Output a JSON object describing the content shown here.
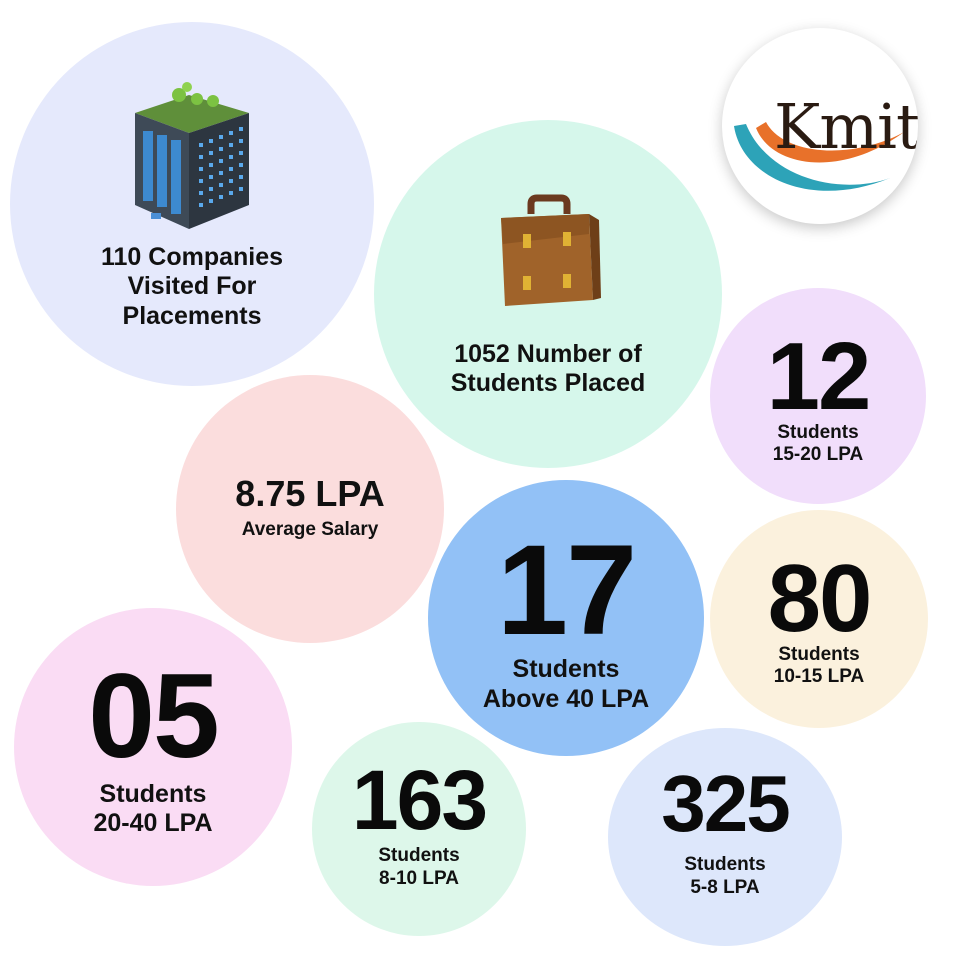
{
  "brand": {
    "logo_text": "Kmit",
    "colors": {
      "orange": "#E8712A",
      "teal": "#2DA3B8",
      "ink": "#2A1B12"
    }
  },
  "companies": {
    "text": "110 Companies Visited For Placements",
    "icon": "office-building-icon"
  },
  "placed": {
    "text": "1052 Number of Students Placed",
    "icon": "briefcase-icon"
  },
  "average": {
    "value": "8.75 LPA",
    "label": "Average Salary"
  },
  "bands": [
    {
      "count": "12",
      "unit": "Students",
      "range": "15-20 LPA"
    },
    {
      "count": "17",
      "unit": "Students",
      "range": "Above 40 LPA"
    },
    {
      "count": "80",
      "unit": "Students",
      "range": "10-15 LPA"
    },
    {
      "count": "05",
      "unit": "Students",
      "range": "20-40 LPA"
    },
    {
      "count": "163",
      "unit": "Students",
      "range": "8-10 LPA"
    },
    {
      "count": "325",
      "unit": "Students",
      "range": "5-8 LPA"
    }
  ],
  "colors": {
    "companies_bg": "#E5E9FC",
    "placed_bg": "#D6F7EB",
    "band_15_20_bg": "#F1DEFB",
    "average_bg": "#FBDDDD",
    "band_above40_bg": "#92C1F6",
    "band_10_15_bg": "#FBF1DD",
    "band_20_40_bg": "#FADCF4",
    "band_8_10_bg": "#DDF7EA",
    "band_5_8_bg": "#DDE7FB"
  }
}
